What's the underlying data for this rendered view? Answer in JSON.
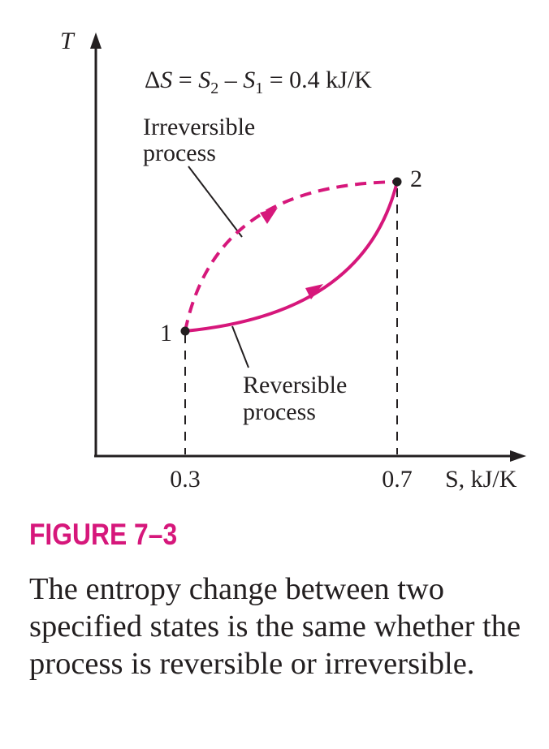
{
  "colors": {
    "accent": "#d6177b",
    "ink": "#231f20"
  },
  "axes": {
    "y_label": "T",
    "x_label": "S, kJ/K",
    "x_ticks": [
      "0.3",
      "0.7"
    ]
  },
  "equation": {
    "delta": "Δ",
    "s": "S",
    "eq1": " = ",
    "s2": "S",
    "sub2": "2",
    "minus": " – ",
    "s1": "S",
    "sub1": "1",
    "eq2": " = 0.4  kJ/K"
  },
  "states": {
    "state1": "1",
    "state2": "2"
  },
  "labels": {
    "irreversible_line1": "Irreversible",
    "irreversible_line2": "process",
    "reversible_line1": "Reversible",
    "reversible_line2": "process"
  },
  "caption": {
    "title": "FIGURE 7–3",
    "text": "The entropy change between two specified states is the same whether the process is reversible or irreversible."
  }
}
